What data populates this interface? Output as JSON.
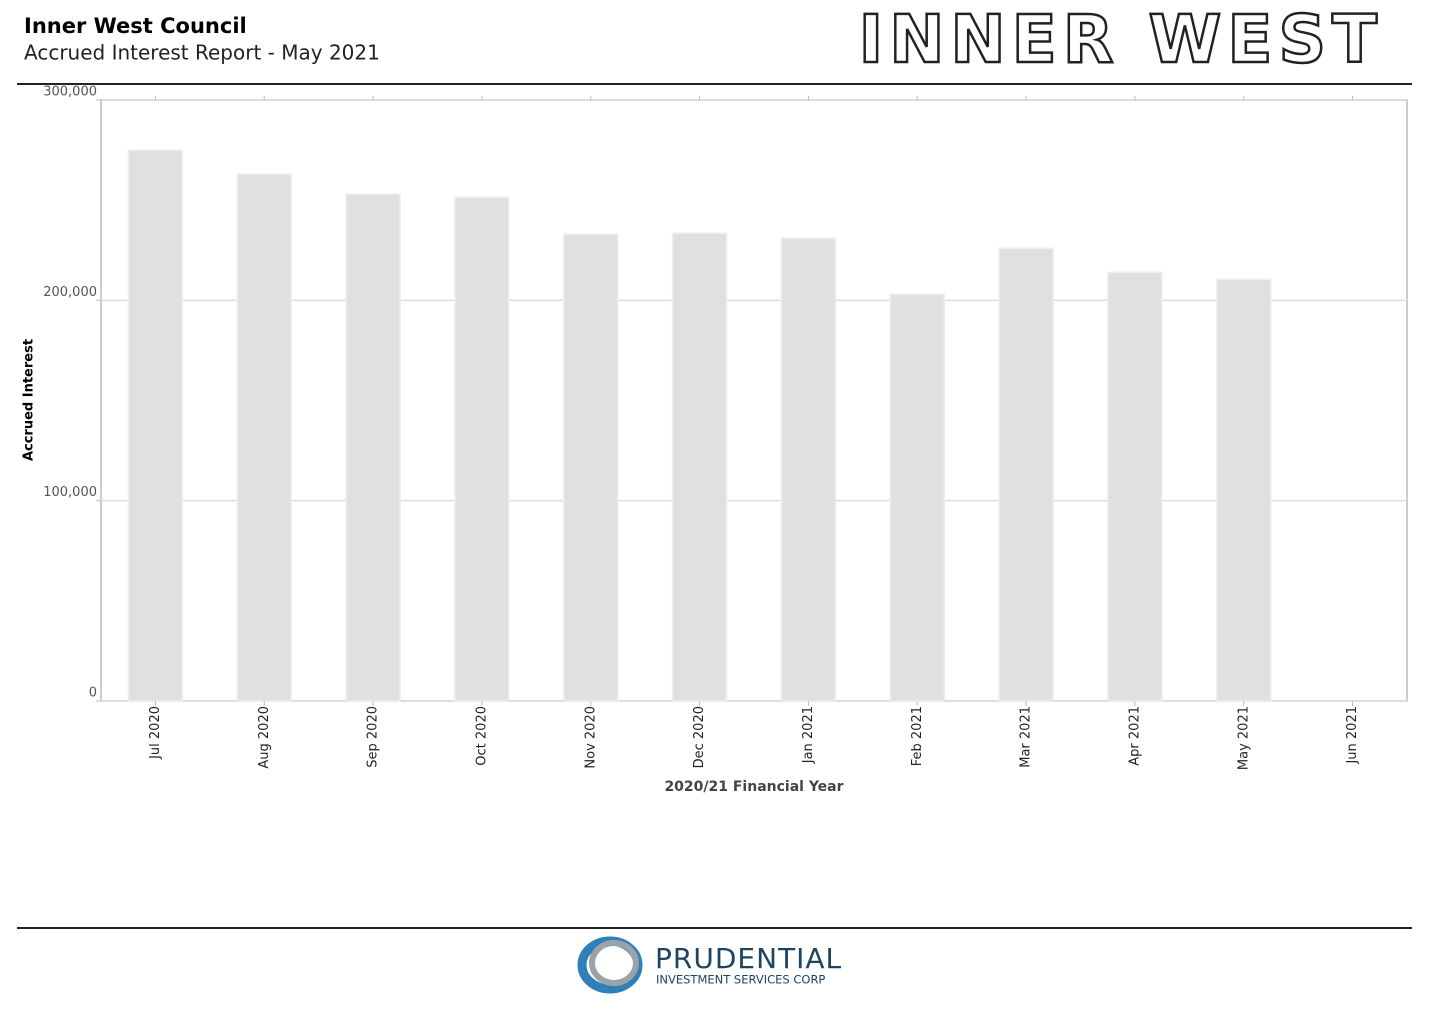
{
  "header": {
    "title": "Inner West Council",
    "subtitle": "Accrued Interest Report - May 2021",
    "logo": "INNER WEST"
  },
  "chart_data": {
    "type": "bar",
    "y_axis_label": "Accrued Interest",
    "x_axis_label": "2020/21 Financial Year",
    "categories": [
      "Jul 2020",
      "Aug 2020",
      "Sep 2020",
      "Oct 2020",
      "Nov 2020",
      "Dec 2020",
      "Jan 2021",
      "Feb 2021",
      "Mar 2021",
      "Apr 2021",
      "May 2021",
      "Jun 2021"
    ],
    "values": [
      275000,
      263000,
      253000,
      251500,
      233000,
      233500,
      231000,
      203000,
      226000,
      214000,
      210500,
      null
    ],
    "color": "#e0e0e0",
    "ylim": [
      0,
      300000
    ],
    "yticks": [
      0,
      {
        "value": 100000,
        "label": "100,000"
      },
      {
        "value": 200000,
        "label": "200,000"
      },
      {
        "value": 300000,
        "label": "300,000"
      }
    ],
    "grid": true
  },
  "footer": {
    "brand": "PRUDENTIAL",
    "tagline": "INVESTMENT SERVICES CORP"
  }
}
